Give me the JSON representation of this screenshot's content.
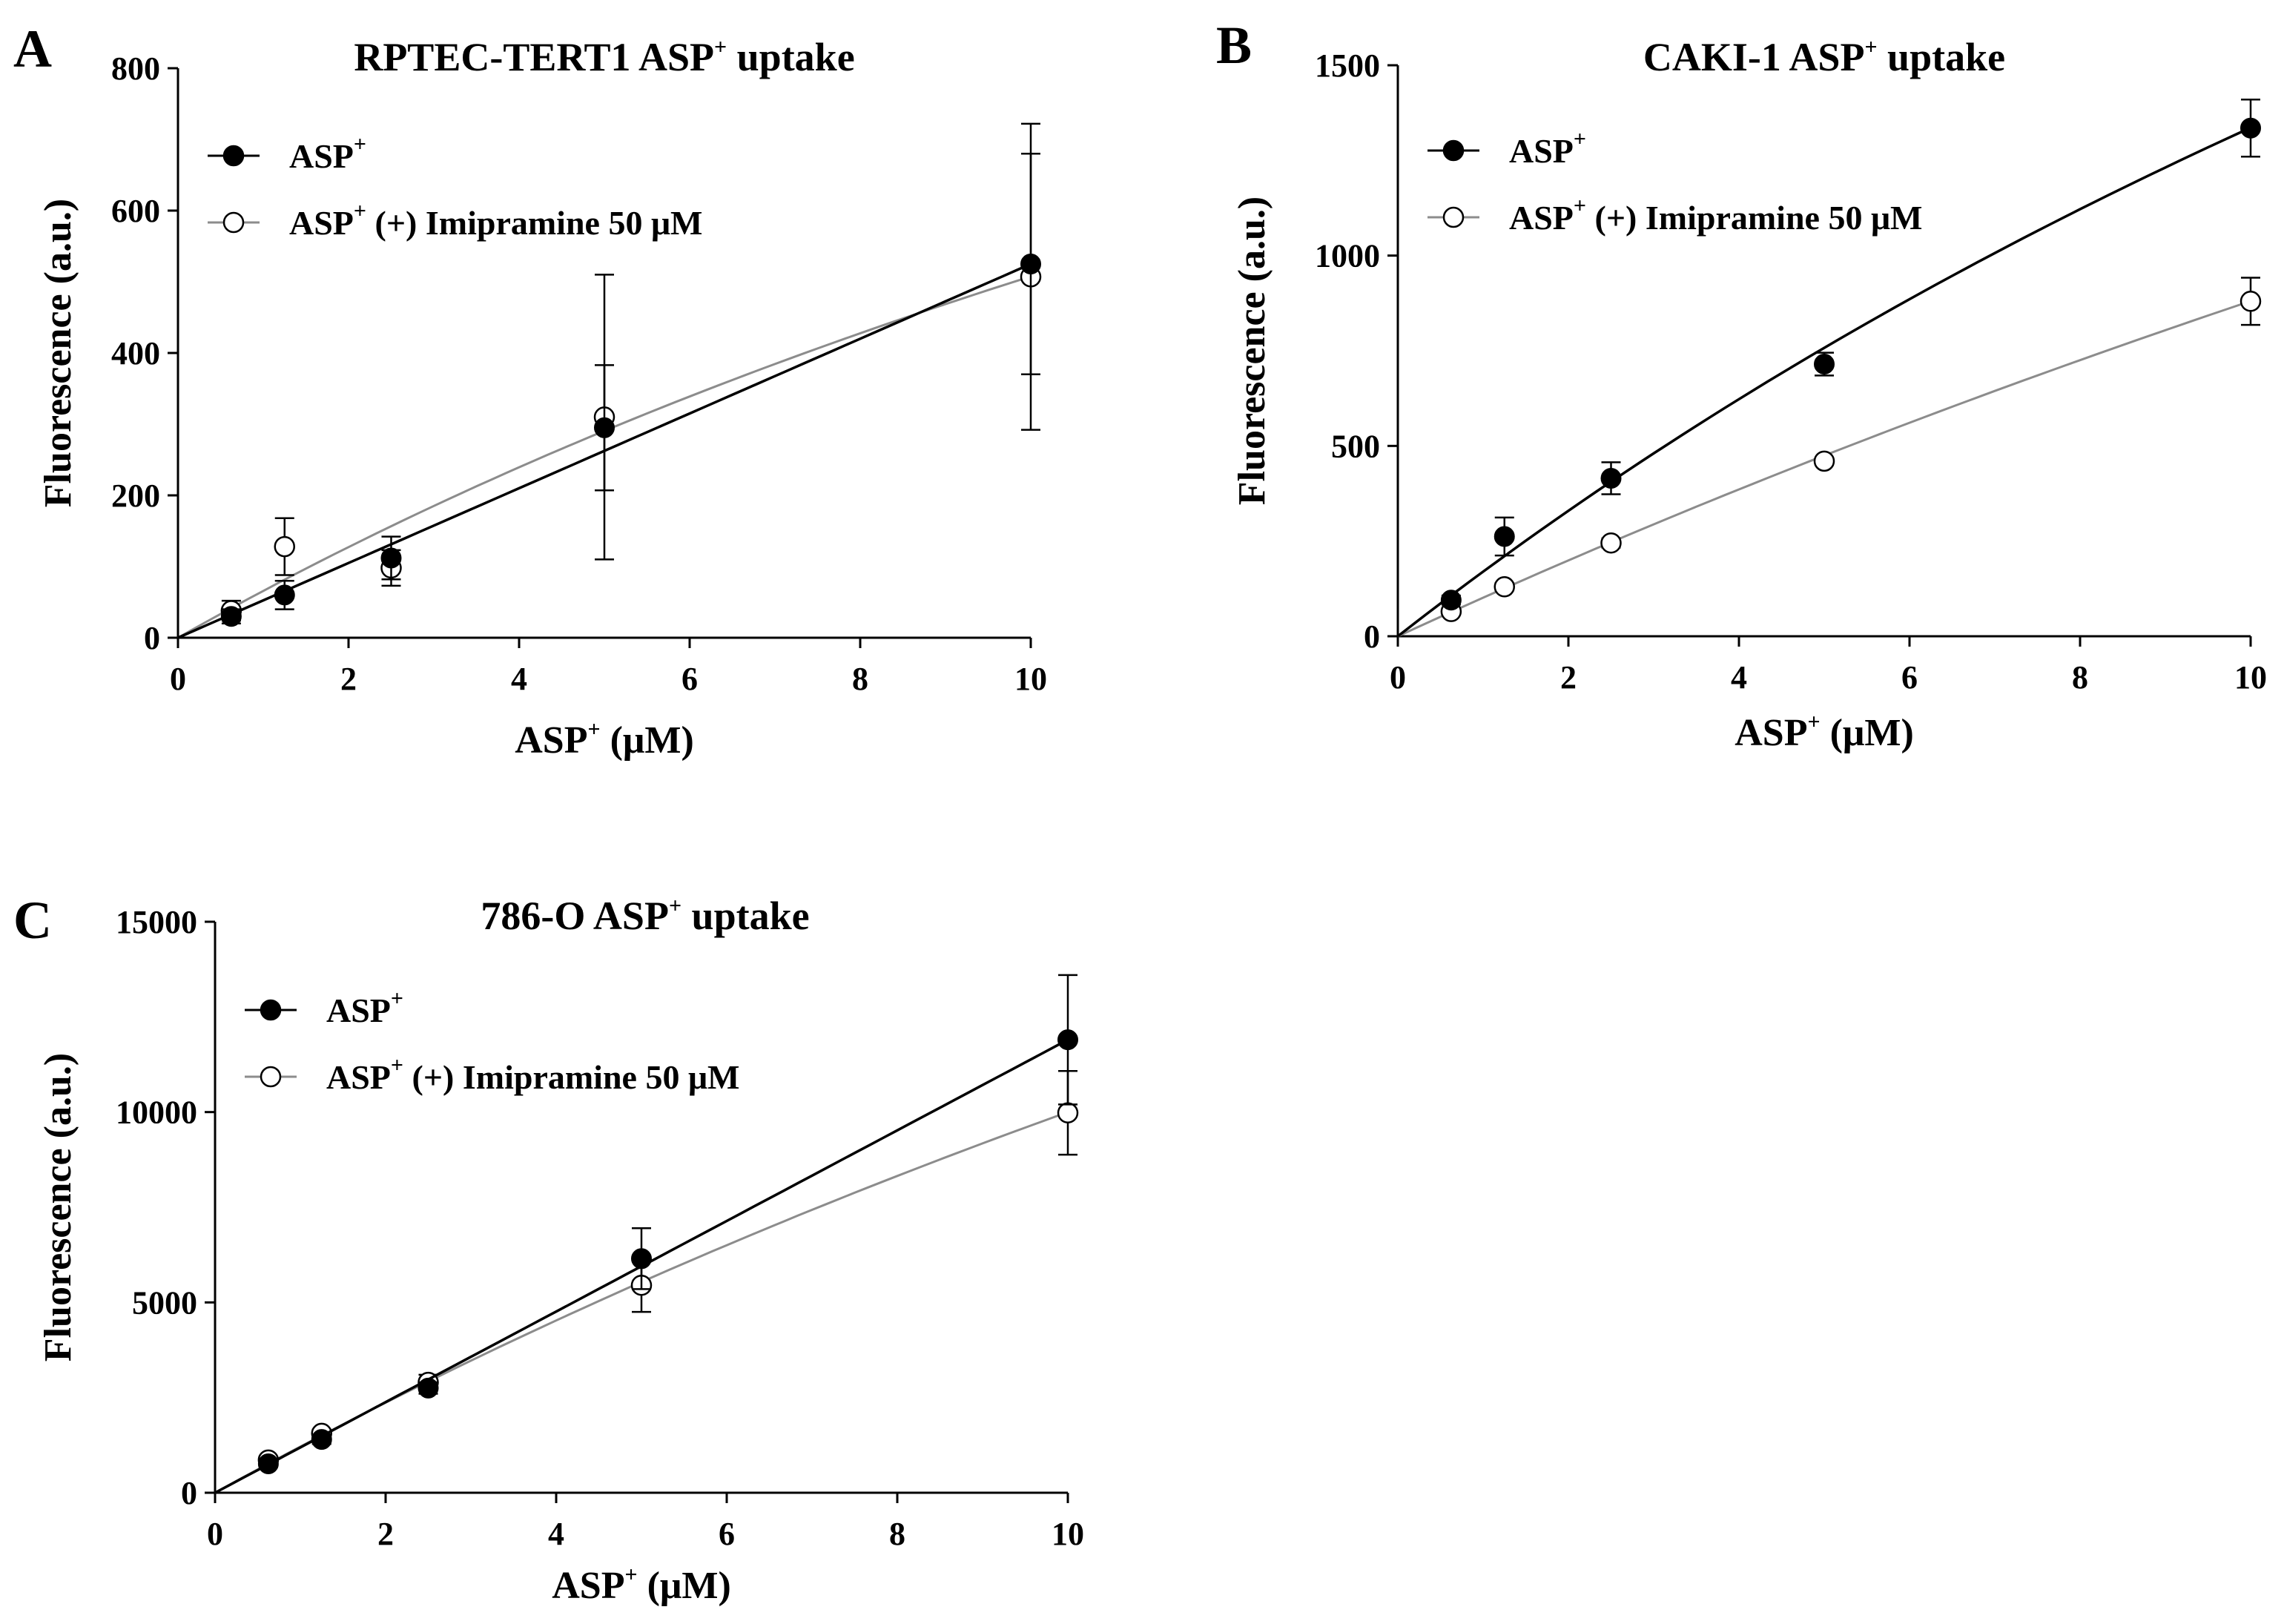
{
  "chart_data": [
    {
      "type": "scatter",
      "panel": "A",
      "title": "RPTEC-TERT1 ASP",
      "title_sup": "+",
      "title_suffix": " uptake",
      "xlabel": "ASP",
      "xlabel_sup": "+",
      "xlabel_suffix": " (μM)",
      "ylabel": "Fluorescence (a.u.)",
      "xlim": [
        0,
        10
      ],
      "ylim": [
        0,
        800
      ],
      "xticks": [
        0,
        2,
        4,
        6,
        8,
        10
      ],
      "yticks": [
        0,
        200,
        400,
        600,
        800
      ],
      "series": [
        {
          "name": "ASP",
          "name_sup": "+",
          "name_suffix": "",
          "marker": "filled",
          "color": "#000000",
          "x": [
            0.625,
            1.25,
            2.5,
            5,
            10
          ],
          "y": [
            30,
            60,
            112,
            295,
            525
          ],
          "err": [
            10,
            20,
            30,
            88,
            155
          ],
          "fit_kind": "linear",
          "fit_a": 52.5
        },
        {
          "name": "ASP",
          "name_sup": "+",
          "name_suffix": " (+) Imipramine 50 μM",
          "marker": "open",
          "color": "#8c8c8c",
          "x": [
            0.625,
            1.25,
            2.5,
            5,
            10
          ],
          "y": [
            38,
            128,
            98,
            310,
            507
          ],
          "err": [
            14,
            40,
            25,
            200,
            215
          ],
          "fit_kind": "mm",
          "fit_a": 68,
          "fit_b": 0.034
        }
      ]
    },
    {
      "type": "scatter",
      "panel": "B",
      "title": "CAKI-1 ASP",
      "title_sup": "+",
      "title_suffix": " uptake",
      "xlabel": "ASP",
      "xlabel_sup": "+",
      "xlabel_suffix": " (μM)",
      "ylabel": "Fluorescence (a.u.)",
      "xlim": [
        0,
        10
      ],
      "ylim": [
        0,
        1500
      ],
      "xticks": [
        0,
        2,
        4,
        6,
        8,
        10
      ],
      "yticks": [
        0,
        500,
        1000,
        1500
      ],
      "series": [
        {
          "name": "ASP",
          "name_sup": "+",
          "name_suffix": "",
          "marker": "filled",
          "color": "#000000",
          "x": [
            0.625,
            1.25,
            2.5,
            5,
            10
          ],
          "y": [
            95,
            262,
            415,
            715,
            1335
          ],
          "err": [
            12,
            50,
            42,
            30,
            75
          ],
          "fit_kind": "mm",
          "fit_a": 175,
          "fit_b": 0.031
        },
        {
          "name": "ASP",
          "name_sup": "+",
          "name_suffix": " (+) Imipramine 50 μM",
          "marker": "open",
          "color": "#8c8c8c",
          "x": [
            0.625,
            1.25,
            2.5,
            5,
            10
          ],
          "y": [
            65,
            130,
            245,
            460,
            880
          ],
          "err": [
            8,
            10,
            12,
            10,
            62
          ],
          "fit_kind": "mm",
          "fit_a": 103,
          "fit_b": 0.017
        }
      ]
    },
    {
      "type": "scatter",
      "panel": "C",
      "title": "786-O ASP",
      "title_sup": "+",
      "title_suffix": " uptake",
      "xlabel": "ASP",
      "xlabel_sup": "+",
      "xlabel_suffix": " (μM)",
      "ylabel": "Fluorescence (a.u.)",
      "xlim": [
        0,
        10
      ],
      "ylim": [
        0,
        15000
      ],
      "xticks": [
        0,
        2,
        4,
        6,
        8,
        10
      ],
      "yticks": [
        0,
        5000,
        10000,
        15000
      ],
      "series": [
        {
          "name": "ASP",
          "name_sup": "+",
          "name_suffix": "",
          "marker": "filled",
          "color": "#000000",
          "x": [
            0.625,
            1.25,
            2.5,
            5,
            10
          ],
          "y": [
            760,
            1400,
            2750,
            6150,
            11900
          ],
          "err": [
            80,
            120,
            150,
            800,
            1700
          ],
          "fit_kind": "linear",
          "fit_a": 1190
        },
        {
          "name": "ASP",
          "name_sup": "+",
          "name_suffix": " (+) Imipramine 50 μM",
          "marker": "open",
          "color": "#8c8c8c",
          "x": [
            0.625,
            1.25,
            2.5,
            5,
            10
          ],
          "y": [
            860,
            1560,
            2900,
            5450,
            9980
          ],
          "err": [
            80,
            100,
            200,
            700,
            1100
          ],
          "fit_kind": "mm",
          "fit_a": 1240,
          "fit_b": 0.024
        }
      ]
    }
  ]
}
